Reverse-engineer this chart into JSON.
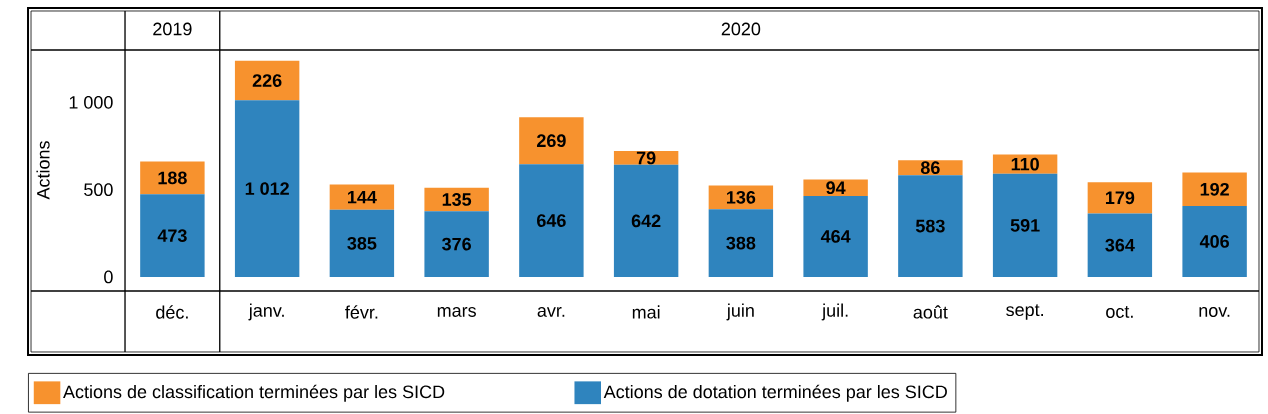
{
  "chart_data": {
    "type": "bar",
    "stacked": true,
    "ylabel": "Actions",
    "annotations": [
      "2019",
      "2020"
    ],
    "categories": [
      "déc.",
      "janv.",
      "févr.",
      "mars",
      "avr.",
      "mai",
      "juin",
      "juil.",
      "août",
      "sept.",
      "oct.",
      "nov."
    ],
    "series": [
      {
        "name": "Actions de dotation terminées par les SICD",
        "color": "#2f84be",
        "values": [
          473,
          1012,
          385,
          376,
          646,
          642,
          388,
          464,
          583,
          591,
          364,
          406
        ],
        "value_labels": [
          "473",
          "1 012",
          "385",
          "376",
          "646",
          "642",
          "388",
          "464",
          "583",
          "591",
          "364",
          "406"
        ]
      },
      {
        "name": "Actions de classification terminées par les SICD",
        "color": "#f7922e",
        "values": [
          188,
          226,
          144,
          135,
          269,
          79,
          136,
          94,
          86,
          110,
          179,
          192
        ],
        "value_labels": [
          "188",
          "226",
          "144",
          "135",
          "269",
          "79",
          "136",
          "94",
          "86",
          "110",
          "179",
          "192"
        ]
      }
    ],
    "ylim": [
      -430,
      1300
    ],
    "yticks": [
      0,
      500,
      {
        "value": 1000,
        "label": "1 000"
      }
    ],
    "grid": false,
    "legend": "bottom"
  }
}
